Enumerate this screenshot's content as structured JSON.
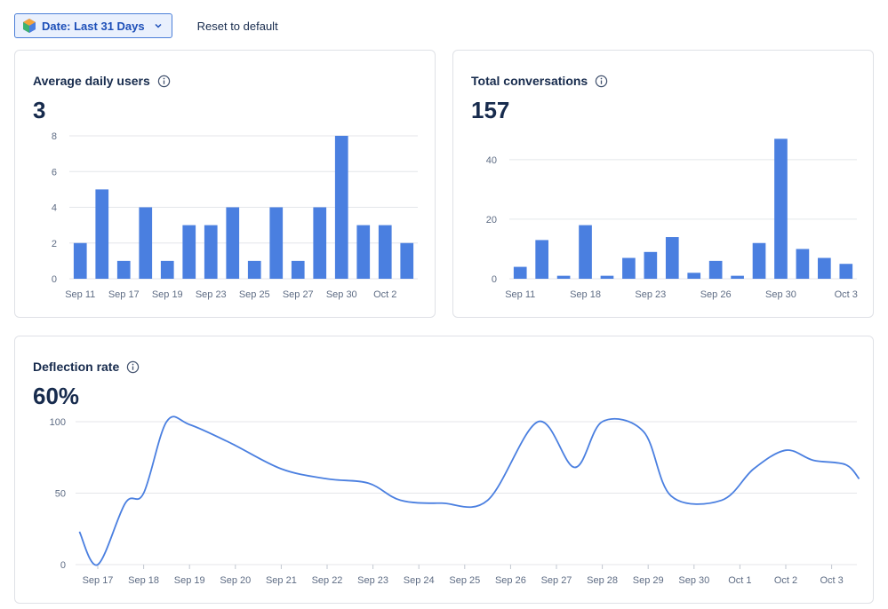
{
  "toolbar": {
    "date_label": "Date: Last 31 Days",
    "reset_label": "Reset to default"
  },
  "colors": {
    "accent": "#4a7fe0",
    "text": "#172b4d",
    "muted": "#5e6c84"
  },
  "cards": {
    "avg_users": {
      "title": "Average daily users",
      "value": "3"
    },
    "total_conv": {
      "title": "Total conversations",
      "value": "157"
    },
    "deflection": {
      "title": "Deflection rate",
      "value": "60%"
    }
  },
  "chart_data": [
    {
      "type": "bar",
      "title": "Average daily users",
      "ylim": [
        0,
        8
      ],
      "yticks": [
        0,
        2,
        4,
        6,
        8
      ],
      "values": [
        2,
        5,
        1,
        4,
        1,
        3,
        3,
        4,
        1,
        4,
        1,
        4,
        8,
        3,
        3,
        2
      ],
      "xtick_labels": [
        {
          "index": 0,
          "label": "Sep 11"
        },
        {
          "index": 2,
          "label": "Sep 17"
        },
        {
          "index": 4,
          "label": "Sep 19"
        },
        {
          "index": 6,
          "label": "Sep 23"
        },
        {
          "index": 8,
          "label": "Sep 25"
        },
        {
          "index": 10,
          "label": "Sep 27"
        },
        {
          "index": 12,
          "label": "Sep 30"
        },
        {
          "index": 14,
          "label": "Oct 2"
        }
      ]
    },
    {
      "type": "bar",
      "title": "Total conversations",
      "ylim": [
        0,
        48
      ],
      "yticks": [
        0,
        20,
        40
      ],
      "values": [
        4,
        13,
        1,
        18,
        1,
        7,
        9,
        14,
        2,
        6,
        1,
        12,
        47,
        10,
        7,
        5
      ],
      "xtick_labels": [
        {
          "index": 0,
          "label": "Sep 11"
        },
        {
          "index": 3,
          "label": "Sep 18"
        },
        {
          "index": 6,
          "label": "Sep 23"
        },
        {
          "index": 9,
          "label": "Sep 26"
        },
        {
          "index": 12,
          "label": "Sep 30"
        },
        {
          "index": 15,
          "label": "Oct 3"
        }
      ]
    },
    {
      "type": "line",
      "title": "Deflection rate",
      "ylim": [
        0,
        100
      ],
      "yticks": [
        0,
        50,
        100
      ],
      "categories": [
        "Sep 17",
        "Sep 18",
        "Sep 19",
        "Sep 20",
        "Sep 21",
        "Sep 22",
        "Sep 23",
        "Sep 24",
        "Sep 25",
        "Sep 26",
        "Sep 27",
        "Sep 28",
        "Sep 29",
        "Sep 30",
        "Oct 1",
        "Oct 2",
        "Oct 3"
      ],
      "x": [
        -0.4,
        0,
        0.6,
        1,
        1.5,
        2,
        2.9,
        4,
        5,
        5.9,
        6.6,
        7.5,
        8.5,
        9.6,
        10.4,
        11,
        11.9,
        12.5,
        13.6,
        14.3,
        15,
        15.6,
        16.3,
        16.6
      ],
      "y": [
        23,
        0,
        43,
        50,
        100,
        98,
        85,
        67,
        60,
        57,
        45,
        43,
        45,
        100,
        68,
        100,
        93,
        48,
        45,
        67,
        80,
        73,
        70,
        60
      ]
    }
  ]
}
